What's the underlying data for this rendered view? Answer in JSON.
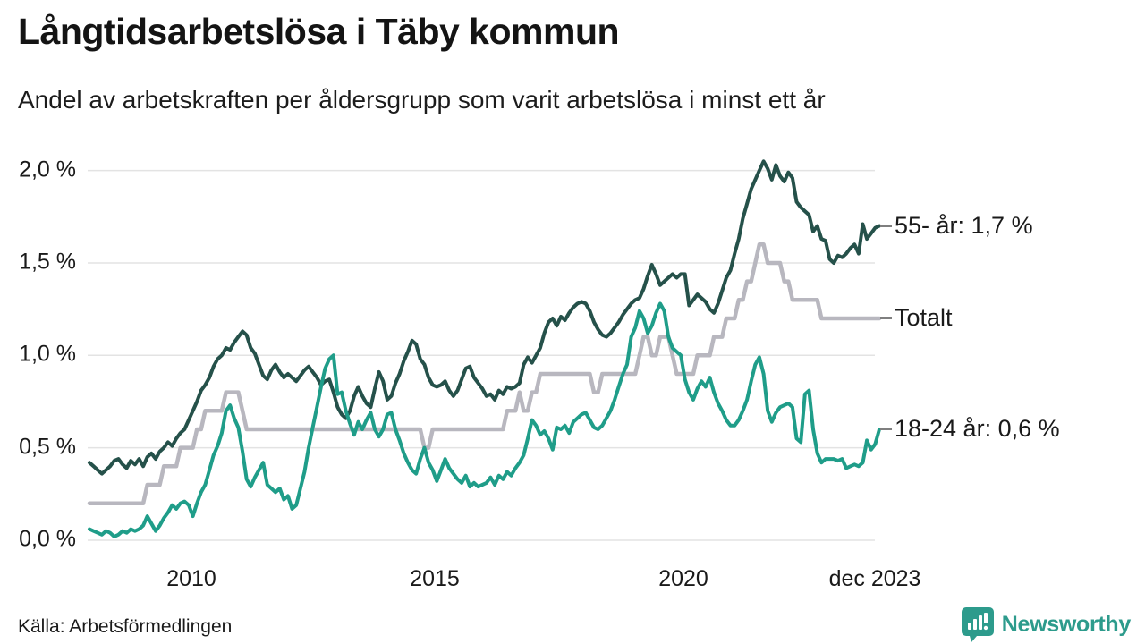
{
  "header": {
    "title": "Långtidsarbetslösa i Täby kommun",
    "subtitle": "Andel av arbetskraften per åldersgrupp som varit arbetslösa i minst ett år"
  },
  "footer": {
    "source": "Källa: Arbetsförmedlingen",
    "brand": "Newsworthy"
  },
  "chart_data": {
    "type": "line",
    "title": "Långtidsarbetslösa i Täby kommun",
    "subtitle": "Andel av arbetskraften per åldersgrupp som varit arbetslösa i minst ett år",
    "x_unit": "month",
    "x_start": "2008-01",
    "x_end": "2023-12",
    "x_tick_labels": [
      "2010",
      "2015",
      "2020",
      "dec 2023"
    ],
    "y_tick_labels": [
      "2,0 %",
      "1,5 %",
      "1,0 %",
      "0,5 %",
      "0,0 %"
    ],
    "y_ticks": [
      0,
      0.5,
      1.0,
      1.5,
      2.0
    ],
    "ylim": [
      0,
      2.1
    ],
    "grid": "horizontal",
    "grid_color": "#e3e3e3",
    "legend_position": "right-of-line-ends",
    "series": [
      {
        "name": "55- år",
        "label": "55- år: 1,7 %",
        "end_value_text": "1,7 %",
        "color": "#25514a",
        "width": 4,
        "values": [
          0.42,
          0.4,
          0.38,
          0.36,
          0.38,
          0.4,
          0.43,
          0.44,
          0.41,
          0.39,
          0.43,
          0.41,
          0.44,
          0.4,
          0.45,
          0.47,
          0.44,
          0.48,
          0.5,
          0.53,
          0.51,
          0.55,
          0.58,
          0.6,
          0.65,
          0.7,
          0.75,
          0.81,
          0.84,
          0.88,
          0.94,
          0.98,
          1.0,
          1.04,
          1.03,
          1.07,
          1.1,
          1.13,
          1.11,
          1.04,
          1.01,
          0.95,
          0.89,
          0.87,
          0.92,
          0.95,
          0.91,
          0.88,
          0.9,
          0.88,
          0.86,
          0.89,
          0.92,
          0.94,
          0.91,
          0.88,
          0.84,
          0.86,
          0.87,
          0.8,
          0.72,
          0.68,
          0.66,
          0.7,
          0.78,
          0.83,
          0.78,
          0.74,
          0.72,
          0.82,
          0.91,
          0.86,
          0.76,
          0.78,
          0.85,
          0.9,
          0.97,
          1.02,
          1.08,
          1.06,
          0.98,
          0.95,
          0.88,
          0.84,
          0.83,
          0.84,
          0.86,
          0.81,
          0.78,
          0.81,
          0.87,
          0.93,
          0.94,
          0.88,
          0.85,
          0.82,
          0.78,
          0.79,
          0.76,
          0.81,
          0.79,
          0.83,
          0.82,
          0.83,
          0.85,
          0.95,
          0.99,
          0.96,
          1.0,
          1.04,
          1.12,
          1.18,
          1.2,
          1.16,
          1.21,
          1.19,
          1.23,
          1.26,
          1.28,
          1.29,
          1.28,
          1.24,
          1.18,
          1.14,
          1.11,
          1.1,
          1.12,
          1.15,
          1.18,
          1.22,
          1.25,
          1.28,
          1.3,
          1.31,
          1.36,
          1.43,
          1.49,
          1.44,
          1.38,
          1.4,
          1.42,
          1.44,
          1.42,
          1.44,
          1.44,
          1.27,
          1.3,
          1.33,
          1.31,
          1.29,
          1.25,
          1.23,
          1.28,
          1.35,
          1.42,
          1.46,
          1.55,
          1.63,
          1.74,
          1.82,
          1.9,
          1.95,
          2.0,
          2.05,
          2.01,
          1.95,
          2.03,
          1.97,
          1.94,
          1.99,
          1.96,
          1.83,
          1.8,
          1.78,
          1.76,
          1.67,
          1.7,
          1.63,
          1.62,
          1.52,
          1.5,
          1.54,
          1.53,
          1.55,
          1.58,
          1.6,
          1.55,
          1.71,
          1.63,
          1.66,
          1.69,
          1.7
        ]
      },
      {
        "name": "Totalt",
        "label": "Totalt",
        "end_value_text": "1,2 %",
        "color": "#b8b7bf",
        "width": 4.5,
        "values": [
          0.2,
          0.2,
          0.2,
          0.2,
          0.2,
          0.2,
          0.2,
          0.2,
          0.2,
          0.2,
          0.2,
          0.2,
          0.2,
          0.2,
          0.3,
          0.3,
          0.3,
          0.3,
          0.4,
          0.4,
          0.4,
          0.4,
          0.5,
          0.5,
          0.5,
          0.5,
          0.6,
          0.6,
          0.7,
          0.7,
          0.7,
          0.7,
          0.7,
          0.8,
          0.8,
          0.8,
          0.8,
          0.7,
          0.6,
          0.6,
          0.6,
          0.6,
          0.6,
          0.6,
          0.6,
          0.6,
          0.6,
          0.6,
          0.6,
          0.6,
          0.6,
          0.6,
          0.6,
          0.6,
          0.6,
          0.6,
          0.6,
          0.6,
          0.6,
          0.6,
          0.6,
          0.6,
          0.6,
          0.6,
          0.6,
          0.6,
          0.6,
          0.6,
          0.6,
          0.6,
          0.6,
          0.6,
          0.6,
          0.6,
          0.6,
          0.6,
          0.6,
          0.6,
          0.6,
          0.6,
          0.6,
          0.5,
          0.5,
          0.6,
          0.6,
          0.6,
          0.6,
          0.6,
          0.6,
          0.6,
          0.6,
          0.6,
          0.6,
          0.6,
          0.6,
          0.6,
          0.6,
          0.6,
          0.6,
          0.6,
          0.6,
          0.7,
          0.7,
          0.7,
          0.8,
          0.7,
          0.7,
          0.8,
          0.8,
          0.9,
          0.9,
          0.9,
          0.9,
          0.9,
          0.9,
          0.9,
          0.9,
          0.9,
          0.9,
          0.9,
          0.9,
          0.9,
          0.8,
          0.8,
          0.9,
          0.9,
          0.9,
          0.9,
          0.9,
          0.9,
          0.9,
          0.9,
          0.9,
          1.0,
          1.1,
          1.1,
          1.0,
          1.0,
          1.1,
          1.1,
          1.1,
          1.0,
          0.9,
          0.9,
          0.9,
          0.9,
          0.9,
          1.0,
          1.0,
          1.0,
          1.0,
          1.1,
          1.1,
          1.1,
          1.2,
          1.2,
          1.2,
          1.3,
          1.3,
          1.4,
          1.4,
          1.5,
          1.6,
          1.6,
          1.5,
          1.5,
          1.5,
          1.5,
          1.4,
          1.4,
          1.3,
          1.3,
          1.3,
          1.3,
          1.3,
          1.3,
          1.3,
          1.2,
          1.2,
          1.2,
          1.2,
          1.2,
          1.2,
          1.2,
          1.2,
          1.2,
          1.2,
          1.2,
          1.2,
          1.2,
          1.2,
          1.2
        ]
      },
      {
        "name": "18-24 år",
        "label": "18-24 år: 0,6 %",
        "end_value_text": "0,6 %",
        "color": "#1f9d89",
        "width": 4,
        "values": [
          0.06,
          0.05,
          0.04,
          0.03,
          0.05,
          0.04,
          0.02,
          0.03,
          0.05,
          0.04,
          0.06,
          0.05,
          0.06,
          0.08,
          0.13,
          0.09,
          0.05,
          0.08,
          0.12,
          0.15,
          0.19,
          0.17,
          0.2,
          0.21,
          0.19,
          0.13,
          0.2,
          0.26,
          0.3,
          0.38,
          0.46,
          0.51,
          0.58,
          0.7,
          0.73,
          0.66,
          0.61,
          0.48,
          0.33,
          0.29,
          0.34,
          0.38,
          0.42,
          0.3,
          0.28,
          0.26,
          0.28,
          0.22,
          0.24,
          0.17,
          0.19,
          0.28,
          0.37,
          0.5,
          0.61,
          0.72,
          0.83,
          0.93,
          0.98,
          1.0,
          0.79,
          0.8,
          0.7,
          0.63,
          0.57,
          0.64,
          0.6,
          0.65,
          0.69,
          0.6,
          0.56,
          0.6,
          0.68,
          0.69,
          0.6,
          0.54,
          0.47,
          0.42,
          0.38,
          0.36,
          0.44,
          0.5,
          0.42,
          0.38,
          0.32,
          0.38,
          0.44,
          0.39,
          0.36,
          0.33,
          0.31,
          0.35,
          0.29,
          0.31,
          0.29,
          0.3,
          0.31,
          0.34,
          0.3,
          0.35,
          0.33,
          0.37,
          0.35,
          0.39,
          0.42,
          0.46,
          0.55,
          0.65,
          0.62,
          0.57,
          0.59,
          0.55,
          0.49,
          0.61,
          0.6,
          0.62,
          0.58,
          0.64,
          0.66,
          0.68,
          0.69,
          0.65,
          0.61,
          0.6,
          0.62,
          0.66,
          0.7,
          0.76,
          0.83,
          0.9,
          0.95,
          1.1,
          1.15,
          1.24,
          1.2,
          1.12,
          1.16,
          1.23,
          1.28,
          1.24,
          1.1,
          1.04,
          1.02,
          1.0,
          0.87,
          0.8,
          0.76,
          0.82,
          0.86,
          0.83,
          0.88,
          0.8,
          0.74,
          0.7,
          0.65,
          0.62,
          0.62,
          0.65,
          0.7,
          0.76,
          0.86,
          0.95,
          0.99,
          0.9,
          0.7,
          0.64,
          0.69,
          0.72,
          0.73,
          0.74,
          0.72,
          0.55,
          0.53,
          0.79,
          0.81,
          0.6,
          0.47,
          0.42,
          0.44,
          0.44,
          0.44,
          0.43,
          0.44,
          0.39,
          0.4,
          0.41,
          0.4,
          0.42,
          0.54,
          0.49,
          0.52,
          0.6
        ]
      }
    ]
  }
}
